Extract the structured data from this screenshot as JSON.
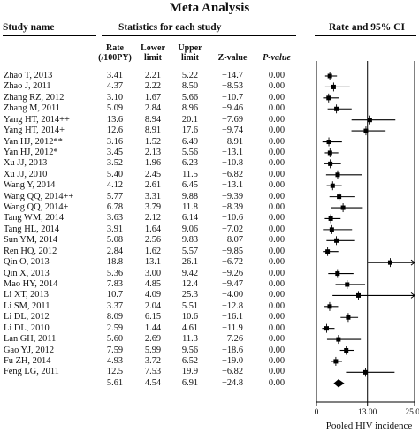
{
  "title": "Meta Analysis",
  "headers": {
    "study_name": "Study name",
    "stats": "Statistics for each study",
    "rate_ci": "Rate and 95% CI",
    "rate": [
      "Rate",
      "(/100PY)"
    ],
    "lower": [
      "Lower",
      "limit"
    ],
    "upper": [
      "Upper",
      "limit"
    ],
    "z": "Z-value",
    "p": "P-value"
  },
  "rows": [
    {
      "study": "Zhao T, 2013",
      "rate": "3.41",
      "lower": "2.21",
      "upper": "5.22",
      "z": "−14.7",
      "p": "0.00"
    },
    {
      "study": "Zhao J, 2011",
      "rate": "4.37",
      "lower": "2.22",
      "upper": "8.50",
      "z": "−8.53",
      "p": "0.00"
    },
    {
      "study": "Zhang RZ, 2012",
      "rate": "3.10",
      "lower": "1.67",
      "upper": "5.66",
      "z": "−10.7",
      "p": "0.00"
    },
    {
      "study": "Zhang M, 2011",
      "rate": "5.09",
      "lower": "2.84",
      "upper": "8.96",
      "z": "−9.46",
      "p": "0.00"
    },
    {
      "study": "Yang HT, 2014++",
      "rate": "13.6",
      "lower": "8.94",
      "upper": "20.1",
      "z": "−7.69",
      "p": "0.00"
    },
    {
      "study": "Yang HT, 2014+",
      "rate": "12.6",
      "lower": "8.91",
      "upper": "17.6",
      "z": "−9.74",
      "p": "0.00"
    },
    {
      "study": "Yan HJ, 2012**",
      "rate": "3.16",
      "lower": "1.52",
      "upper": "6.49",
      "z": "−8.91",
      "p": "0.00"
    },
    {
      "study": "Yan HJ, 2012*",
      "rate": "3.45",
      "lower": "2.13",
      "upper": "5.56",
      "z": "−13.1",
      "p": "0.00"
    },
    {
      "study": "Xu JJ, 2013",
      "rate": "3.52",
      "lower": "1.96",
      "upper": "6.23",
      "z": "−10.8",
      "p": "0.00"
    },
    {
      "study": "Xu JJ, 2010",
      "rate": "5.40",
      "lower": "2.45",
      "upper": "11.5",
      "z": "−6.82",
      "p": "0.00"
    },
    {
      "study": "Wang Y, 2014",
      "rate": "4.12",
      "lower": "2.61",
      "upper": "6.45",
      "z": "−13.1",
      "p": "0.00"
    },
    {
      "study": "Wang QQ, 2014++",
      "rate": "5.77",
      "lower": "3.31",
      "upper": "9.88",
      "z": "−9.39",
      "p": "0.00"
    },
    {
      "study": "Wang QQ, 2014+",
      "rate": "6.78",
      "lower": "3.79",
      "upper": "11.8",
      "z": "−8.39",
      "p": "0.00"
    },
    {
      "study": "Tang WM, 2014",
      "rate": "3.63",
      "lower": "2.12",
      "upper": "6.14",
      "z": "−10.6",
      "p": "0.00"
    },
    {
      "study": "Tang HL, 2014",
      "rate": "3.91",
      "lower": "1.64",
      "upper": "9.06",
      "z": "−7.02",
      "p": "0.00"
    },
    {
      "study": "Sun YM, 2014",
      "rate": "5.08",
      "lower": "2.56",
      "upper": "9.83",
      "z": "−8.07",
      "p": "0.00"
    },
    {
      "study": "Ren HQ, 2012",
      "rate": "2.84",
      "lower": "1.62",
      "upper": "5.57",
      "z": "−9.85",
      "p": "0.00"
    },
    {
      "study": "Qin O, 2013",
      "rate": "18.8",
      "lower": "13.1",
      "upper": "26.1",
      "z": "−6.72",
      "p": "0.00"
    },
    {
      "study": "Qin X, 2013",
      "rate": "5.36",
      "lower": "3.00",
      "upper": "9.42",
      "z": "−9.26",
      "p": "0.00"
    },
    {
      "study": "Mao HY, 2014",
      "rate": "7.83",
      "lower": "4.85",
      "upper": "12.4",
      "z": "−9.47",
      "p": "0.00"
    },
    {
      "study": "Li XT, 2013",
      "rate": "10.7",
      "lower": "4.09",
      "upper": "25.3",
      "z": "−4.00",
      "p": "0.00"
    },
    {
      "study": "Li SM, 2011",
      "rate": "3.37",
      "lower": "2.04",
      "upper": "5.51",
      "z": "−12.8",
      "p": "0.00"
    },
    {
      "study": "Li DL, 2012",
      "rate": "8.09",
      "lower": "6.15",
      "upper": "10.6",
      "z": "−16.1",
      "p": "0.00"
    },
    {
      "study": "Li DL, 2010",
      "rate": "2.59",
      "lower": "1.44",
      "upper": "4.61",
      "z": "−11.9",
      "p": "0.00"
    },
    {
      "study": "Lan GH, 2011",
      "rate": "5.60",
      "lower": "2.69",
      "upper": "11.3",
      "z": "−7.26",
      "p": "0.00"
    },
    {
      "study": "Gao YJ, 2012",
      "rate": "7.59",
      "lower": "5.99",
      "upper": "9.56",
      "z": "−18.6",
      "p": "0.00"
    },
    {
      "study": "Fu ZH, 2014",
      "rate": "4.93",
      "lower": "3.72",
      "upper": "6.52",
      "z": "−19.0",
      "p": "0.00"
    },
    {
      "study": "Feng LG, 2011",
      "rate": "12.5",
      "lower": "7.53",
      "upper": "19.9",
      "z": "−6.82",
      "p": "0.00"
    },
    {
      "study": "",
      "rate": "5.61",
      "lower": "4.54",
      "upper": "6.91",
      "z": "−24.8",
      "p": "0.00"
    }
  ],
  "chart_data": {
    "type": "forest",
    "xlim": [
      0,
      25
    ],
    "xticks": [
      "0",
      "13.00",
      "25.00"
    ],
    "xlabel": "Pooled HIV incidence",
    "reference_line": 13,
    "clipped_indicator": "arrow",
    "points": [
      {
        "est": 3.41,
        "lo": 2.21,
        "hi": 5.22
      },
      {
        "est": 4.37,
        "lo": 2.22,
        "hi": 8.5
      },
      {
        "est": 3.1,
        "lo": 1.67,
        "hi": 5.66
      },
      {
        "est": 5.09,
        "lo": 2.84,
        "hi": 8.96
      },
      {
        "est": 13.6,
        "lo": 8.94,
        "hi": 20.1
      },
      {
        "est": 12.6,
        "lo": 8.91,
        "hi": 17.6
      },
      {
        "est": 3.16,
        "lo": 1.52,
        "hi": 6.49
      },
      {
        "est": 3.45,
        "lo": 2.13,
        "hi": 5.56
      },
      {
        "est": 3.52,
        "lo": 1.96,
        "hi": 6.23
      },
      {
        "est": 5.4,
        "lo": 2.45,
        "hi": 11.5
      },
      {
        "est": 4.12,
        "lo": 2.61,
        "hi": 6.45
      },
      {
        "est": 5.77,
        "lo": 3.31,
        "hi": 9.88
      },
      {
        "est": 6.78,
        "lo": 3.79,
        "hi": 11.8
      },
      {
        "est": 3.63,
        "lo": 2.12,
        "hi": 6.14
      },
      {
        "est": 3.91,
        "lo": 1.64,
        "hi": 9.06
      },
      {
        "est": 5.08,
        "lo": 2.56,
        "hi": 9.83
      },
      {
        "est": 2.84,
        "lo": 1.62,
        "hi": 5.57
      },
      {
        "est": 18.8,
        "lo": 13.1,
        "hi": 26.1
      },
      {
        "est": 5.36,
        "lo": 3.0,
        "hi": 9.42
      },
      {
        "est": 7.83,
        "lo": 4.85,
        "hi": 12.4
      },
      {
        "est": 10.7,
        "lo": 4.09,
        "hi": 25.3
      },
      {
        "est": 3.37,
        "lo": 2.04,
        "hi": 5.51
      },
      {
        "est": 8.09,
        "lo": 6.15,
        "hi": 10.6
      },
      {
        "est": 2.59,
        "lo": 1.44,
        "hi": 4.61
      },
      {
        "est": 5.6,
        "lo": 2.69,
        "hi": 11.3
      },
      {
        "est": 7.59,
        "lo": 5.99,
        "hi": 9.56
      },
      {
        "est": 4.93,
        "lo": 3.72,
        "hi": 6.52
      },
      {
        "est": 12.5,
        "lo": 7.53,
        "hi": 19.9
      }
    ],
    "pooled": {
      "est": 5.61,
      "lo": 4.54,
      "hi": 6.91
    }
  }
}
